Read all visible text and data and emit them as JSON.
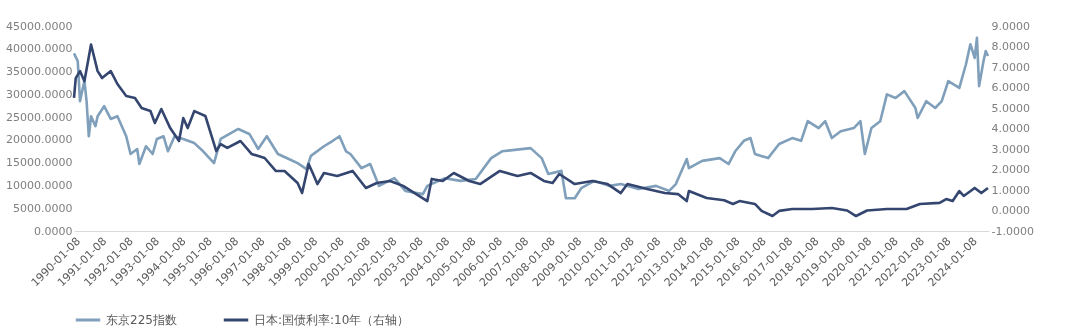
{
  "chart_data": {
    "type": "line",
    "xlim": [
      "1990-01-08",
      "2024-09-15"
    ],
    "xticks": [
      "1990-01-08",
      "1991-01-08",
      "1992-01-08",
      "1993-01-08",
      "1994-01-08",
      "1995-01-08",
      "1996-01-08",
      "1997-01-08",
      "1998-01-08",
      "1999-01-08",
      "2000-01-08",
      "2001-01-08",
      "2002-01-08",
      "2003-01-08",
      "2004-01-08",
      "2005-01-08",
      "2006-01-08",
      "2007-01-08",
      "2008-01-08",
      "2009-01-08",
      "2010-01-08",
      "2011-01-08",
      "2012-01-08",
      "2013-01-08",
      "2014-01-08",
      "2015-01-08",
      "2016-01-08",
      "2017-01-08",
      "2018-01-08",
      "2019-01-08",
      "2020-01-08",
      "2021-01-08",
      "2022-01-08",
      "2023-01-08",
      "2024-01-08"
    ],
    "ylim": [
      0,
      45000
    ],
    "yticks": [
      {
        "value": 0,
        "label": "0.0000"
      },
      {
        "value": 5000,
        "label": "5000.0000"
      },
      {
        "value": 10000,
        "label": "10000.0000"
      },
      {
        "value": 15000,
        "label": "15000.0000"
      },
      {
        "value": 20000,
        "label": "20000.0000"
      },
      {
        "value": 25000,
        "label": "25000.0000"
      },
      {
        "value": 30000,
        "label": "30000.0000"
      },
      {
        "value": 35000,
        "label": "35000.0000"
      },
      {
        "value": 40000,
        "label": "40000.0000"
      },
      {
        "value": 45000,
        "label": "45000.0000"
      }
    ],
    "y2lim": [
      -1,
      9
    ],
    "y2ticks": [
      {
        "value": -1,
        "label": "-1.0000"
      },
      {
        "value": 0,
        "label": "0.0000"
      },
      {
        "value": 1,
        "label": "1.0000"
      },
      {
        "value": 2,
        "label": "2.0000"
      },
      {
        "value": 3,
        "label": "3.0000"
      },
      {
        "value": 4,
        "label": "4.0000"
      },
      {
        "value": 5,
        "label": "5.0000"
      },
      {
        "value": 6,
        "label": "6.0000"
      },
      {
        "value": 7,
        "label": "7.0000"
      },
      {
        "value": 8,
        "label": "8.0000"
      },
      {
        "value": 9,
        "label": "9.0000"
      }
    ],
    "grid": false,
    "legend": "bottom",
    "marker": "none",
    "line_style": "solid",
    "series": [
      {
        "name": "东京225指数",
        "color": "#7f9fba",
        "axis": "y",
        "x": [
          "1990-01-08",
          "1990-03",
          "1990-04",
          "1990-06",
          "1990-07",
          "1990-08",
          "1990-09",
          "1990-11",
          "1990-12",
          "1991-03",
          "1991-06",
          "1991-09",
          "1992-01",
          "1992-03",
          "1992-06",
          "1992-07",
          "1992-10",
          "1993-01",
          "1993-03",
          "1993-06",
          "1993-08",
          "1993-11",
          "1994-03",
          "1994-08",
          "1994-12",
          "1995-05",
          "1995-08",
          "1996-04",
          "1996-09",
          "1997-01",
          "1997-05",
          "1997-10",
          "1998-03",
          "1998-07",
          "1998-11",
          "1999-01",
          "1999-07",
          "1999-11",
          "2000-02",
          "2000-05",
          "2000-07",
          "2000-12",
          "2001-04",
          "2001-08",
          "2002-03",
          "2002-08",
          "2003-04",
          "2003-06",
          "2004-02",
          "2004-09",
          "2005-04",
          "2005-11",
          "2006-04",
          "2007-05",
          "2007-10",
          "2008-01",
          "2008-07",
          "2008-09",
          "2009-01",
          "2009-04",
          "2009-10",
          "2010-05",
          "2010-10",
          "2011-06",
          "2012-02",
          "2012-08",
          "2012-11",
          "2013-04",
          "2013-05",
          "2013-11",
          "2014-07",
          "2014-11",
          "2015-02",
          "2015-06",
          "2015-09",
          "2015-11",
          "2016-05",
          "2016-10",
          "2017-04",
          "2017-08",
          "2017-11",
          "2018-04",
          "2018-07",
          "2018-10",
          "2019-02",
          "2019-08",
          "2019-11",
          "2020-01",
          "2020-04",
          "2020-08",
          "2020-11",
          "2021-03",
          "2021-07",
          "2021-12",
          "2022-01",
          "2022-05",
          "2022-09",
          "2022-12",
          "2023-03",
          "2023-08",
          "2023-11",
          "2024-01",
          "2024-03",
          "2024-04",
          "2024-05",
          "2024-07",
          "2024-08",
          "2024-09"
        ],
        "values": [
          39000,
          37300,
          28500,
          33000,
          28500,
          20800,
          25200,
          23000,
          25200,
          27400,
          24600,
          25200,
          20800,
          16900,
          18000,
          14700,
          18600,
          16900,
          20200,
          20800,
          17500,
          20800,
          20200,
          19300,
          17500,
          14900,
          20200,
          22400,
          21300,
          18000,
          20800,
          16900,
          15800,
          14900,
          13600,
          16500,
          18600,
          19800,
          20800,
          17500,
          16900,
          13800,
          14700,
          9900,
          11600,
          8800,
          8100,
          9900,
          11600,
          11000,
          11400,
          16000,
          17500,
          18200,
          16000,
          12500,
          13200,
          7200,
          7200,
          9400,
          11000,
          9900,
          10300,
          9200,
          9900,
          8800,
          10300,
          15800,
          13800,
          15400,
          16000,
          14700,
          17500,
          19800,
          20400,
          16900,
          16000,
          19100,
          20400,
          19800,
          24100,
          22600,
          24100,
          20400,
          21900,
          22600,
          24100,
          16900,
          22600,
          24100,
          30000,
          29200,
          30700,
          27000,
          24800,
          28500,
          27000,
          28500,
          32900,
          31400,
          36600,
          41000,
          38000,
          42400,
          31800,
          37300,
          39500,
          38400
        ]
      },
      {
        "name": "日本:国债利率:10年（右轴）",
        "color": "#34466f",
        "axis": "y2",
        "x": [
          "1990-01-08",
          "1990-02",
          "1990-04",
          "1990-06",
          "1990-09",
          "1990-12",
          "1991-02",
          "1991-06",
          "1991-09",
          "1992-01",
          "1992-05",
          "1992-08",
          "1992-12",
          "1993-02",
          "1993-05",
          "1993-09",
          "1994-01",
          "1994-03",
          "1994-05",
          "1994-08",
          "1995-01",
          "1995-06",
          "1995-08",
          "1995-11",
          "1996-05",
          "1996-10",
          "1997-04",
          "1997-09",
          "1998-01",
          "1998-07",
          "1998-09",
          "1998-12",
          "1999-02",
          "1999-04",
          "1999-07",
          "2000-01",
          "2000-08",
          "2001-02",
          "2001-07",
          "2002-01",
          "2002-07",
          "2003-06",
          "2003-08",
          "2004-01",
          "2004-06",
          "2005-01",
          "2005-06",
          "2006-03",
          "2006-11",
          "2007-05",
          "2007-11",
          "2008-03",
          "2008-06",
          "2009-01",
          "2009-09",
          "2010-04",
          "2010-10",
          "2011-01",
          "2011-10",
          "2012-06",
          "2012-12",
          "2013-04",
          "2013-05",
          "2014-01",
          "2014-09",
          "2015-01",
          "2015-04",
          "2015-11",
          "2016-02",
          "2016-07",
          "2016-10",
          "2017-04",
          "2018-01",
          "2018-10",
          "2019-05",
          "2019-09",
          "2020-02",
          "2020-11",
          "2021-08",
          "2022-02",
          "2022-11",
          "2023-02",
          "2023-05",
          "2023-08",
          "2023-10",
          "2024-03",
          "2024-06",
          "2024-09"
        ],
        "values": [
          5.49,
          6.46,
          6.8,
          6.3,
          8.1,
          6.8,
          6.46,
          6.8,
          6.17,
          5.59,
          5.49,
          5.0,
          4.85,
          4.27,
          4.95,
          4.02,
          3.39,
          4.51,
          4.02,
          4.85,
          4.61,
          2.9,
          3.24,
          3.05,
          3.39,
          2.76,
          2.56,
          1.93,
          1.93,
          1.34,
          0.85,
          2.27,
          1.78,
          1.29,
          1.83,
          1.68,
          1.93,
          1.1,
          1.34,
          1.44,
          1.2,
          0.46,
          1.54,
          1.44,
          1.83,
          1.44,
          1.29,
          1.93,
          1.68,
          1.83,
          1.44,
          1.34,
          1.78,
          1.29,
          1.44,
          1.29,
          0.85,
          1.29,
          1.05,
          0.85,
          0.8,
          0.46,
          0.95,
          0.61,
          0.5,
          0.32,
          0.46,
          0.32,
          -0.02,
          -0.27,
          -0.02,
          0.07,
          0.07,
          0.12,
          0.0,
          -0.27,
          0.0,
          0.07,
          0.07,
          0.32,
          0.37,
          0.56,
          0.46,
          0.95,
          0.71,
          1.1,
          0.85,
          1.1
        ]
      }
    ]
  }
}
